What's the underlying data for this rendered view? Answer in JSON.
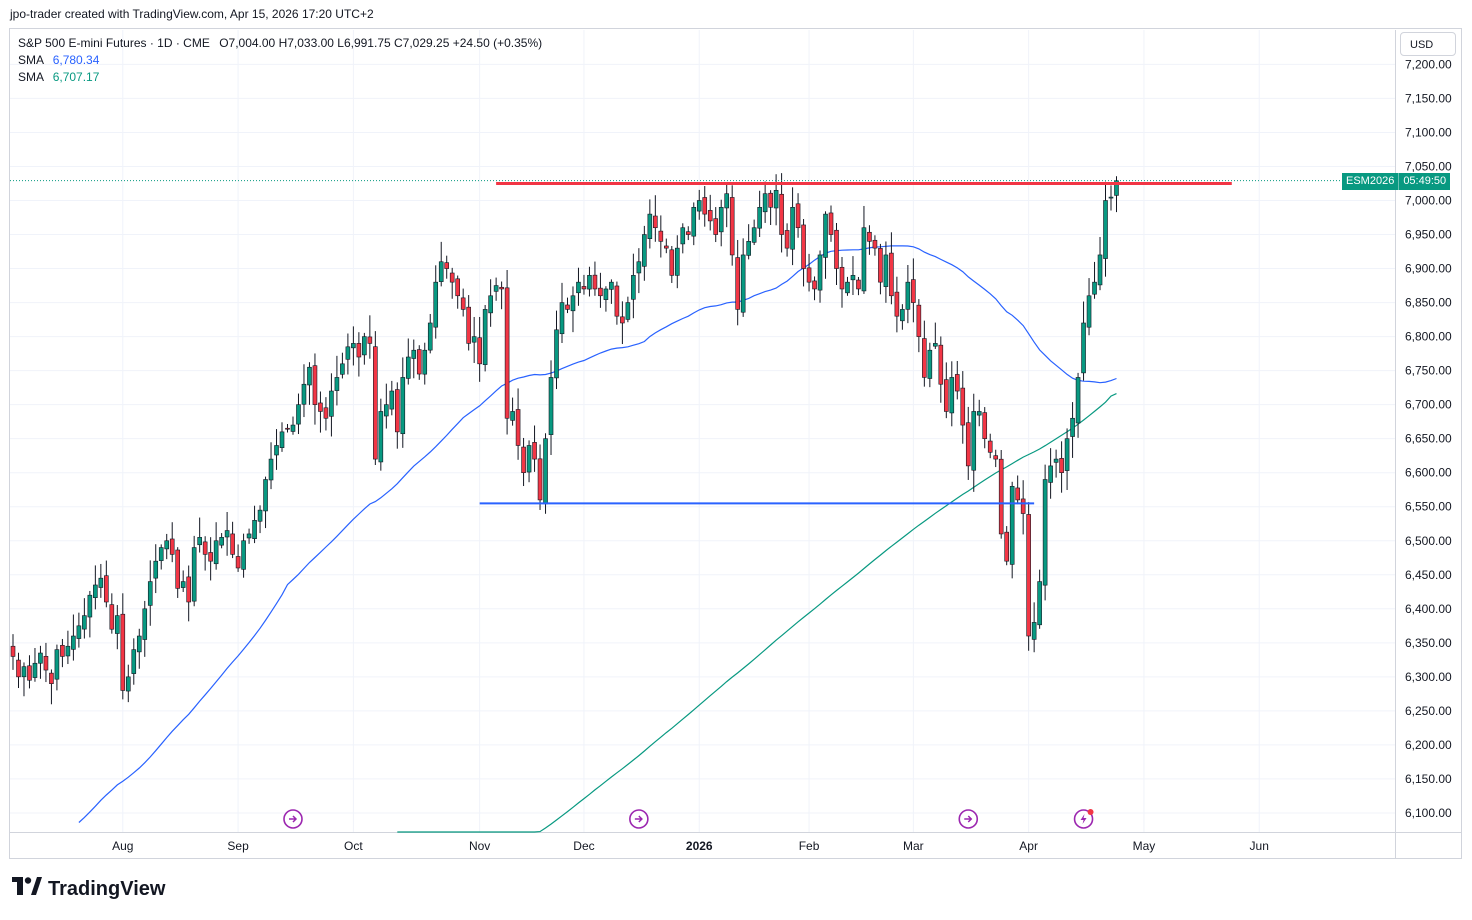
{
  "caption": "jpo-trader created with TradingView.com, Apr 15, 2026 17:20 UTC+2",
  "legend": {
    "title": "S&P 500 E-mini Futures · 1D · CME",
    "ohlc": "O7,004.00  H7,033.00  L6,991.75  C7,029.25  +24.50 (+0.35%)",
    "sma1_label": "SMA",
    "sma1_value": "6,780.34",
    "sma2_label": "SMA",
    "sma2_value": "6,707.17"
  },
  "currency": "USD",
  "symbol_badge": "ESM2026",
  "countdown": "05:49:50",
  "brand": "TradingView",
  "colors": {
    "up": "#089981",
    "down": "#f23645",
    "sma50": "#2962ff",
    "sma200": "#089981",
    "resistance": "#f23645",
    "support": "#2962ff",
    "event": "#9c27b0"
  },
  "chart_data": {
    "type": "candlestick",
    "ylim": [
      6060,
      7260
    ],
    "yticks": [
      "6,100.00",
      "6,150.00",
      "6,200.00",
      "6,250.00",
      "6,300.00",
      "6,350.00",
      "6,400.00",
      "6,450.00",
      "6,500.00",
      "6,550.00",
      "6,600.00",
      "6,650.00",
      "6,700.00",
      "6,750.00",
      "6,800.00",
      "6,850.00",
      "6,900.00",
      "6,950.00",
      "7,000.00",
      "7,050.00",
      "7,100.00",
      "7,150.00",
      "7,200.00"
    ],
    "xticks": [
      {
        "label": "Aug",
        "bar": 20
      },
      {
        "label": "Sep",
        "bar": 41
      },
      {
        "label": "Oct",
        "bar": 62
      },
      {
        "label": "Nov",
        "bar": 85
      },
      {
        "label": "Dec",
        "bar": 104
      },
      {
        "label": "2026",
        "bar": 125
      },
      {
        "label": "Feb",
        "bar": 145
      },
      {
        "label": "Mar",
        "bar": 164
      },
      {
        "label": "Apr",
        "bar": 185
      },
      {
        "label": "May",
        "bar": 206
      },
      {
        "label": "Jun",
        "bar": 227
      }
    ],
    "last_close": 7029.25,
    "resistance": {
      "value": 7025,
      "from_bar": 88,
      "to_bar": 222
    },
    "support": {
      "value": 6555,
      "from_bar": 85,
      "to_bar": 186
    },
    "event_markers": [
      {
        "bar": 51,
        "type": "dividend"
      },
      {
        "bar": 114,
        "type": "dividend"
      },
      {
        "bar": 174,
        "type": "dividend"
      },
      {
        "bar": 195,
        "type": "earnings"
      }
    ],
    "closes": [
      6330,
      6300,
      6315,
      6295,
      6320,
      6335,
      6310,
      6290,
      6340,
      6330,
      6345,
      6360,
      6375,
      6390,
      6420,
      6435,
      6445,
      6410,
      6370,
      6390,
      6280,
      6300,
      6340,
      6360,
      6400,
      6440,
      6470,
      6490,
      6500,
      6480,
      6430,
      6440,
      6410,
      6490,
      6505,
      6480,
      6470,
      6500,
      6505,
      6515,
      6480,
      6460,
      6500,
      6510,
      6530,
      6545,
      6590,
      6620,
      6640,
      6660,
      6665,
      6670,
      6700,
      6730,
      6755,
      6700,
      6690,
      6680,
      6720,
      6740,
      6760,
      6785,
      6790,
      6770,
      6800,
      6790,
      6620,
      6690,
      6700,
      6720,
      6660,
      6740,
      6770,
      6780,
      6745,
      6780,
      6820,
      6880,
      6910,
      6900,
      6880,
      6860,
      6840,
      6790,
      6800,
      6760,
      6840,
      6860,
      6875,
      6870,
      6680,
      6690,
      6640,
      6600,
      6640,
      6620,
      6560,
      6650,
      6740,
      6810,
      6850,
      6840,
      6860,
      6880,
      6870,
      6890,
      6870,
      6860,
      6870,
      6880,
      6830,
      6820,
      6850,
      6890,
      6910,
      6950,
      6980,
      6960,
      6940,
      6930,
      6890,
      6930,
      6960,
      6950,
      6990,
      7000,
      6980,
      6970,
      6950,
      6990,
      7010,
      6920,
      6840,
      6920,
      6940,
      6960,
      6990,
      7010,
      6990,
      7015,
      6950,
      6930,
      6990,
      6960,
      6900,
      6880,
      6870,
      6920,
      6980,
      6950,
      6900,
      6870,
      6880,
      6890,
      6870,
      6960,
      6940,
      6930,
      6880,
      6920,
      6860,
      6830,
      6840,
      6880,
      6850,
      6800,
      6740,
      6780,
      6790,
      6730,
      6690,
      6740,
      6720,
      6670,
      6610,
      6690,
      6690,
      6650,
      6630,
      6620,
      6510,
      6470,
      6580,
      6560,
      6540,
      6360,
      6380,
      6440,
      6590,
      6610,
      6620,
      6600,
      6650,
      6680,
      6740,
      6820,
      6860,
      6880,
      6920,
      7000,
      7005,
      7029
    ]
  }
}
